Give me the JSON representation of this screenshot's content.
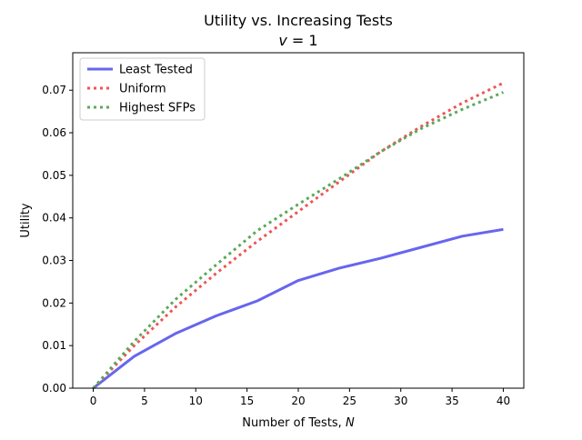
{
  "chart_data": {
    "type": "line",
    "title": "Utility vs. Increasing Tests",
    "subtitle_prefix": "v",
    "subtitle_suffix": " = 1",
    "xlabel_prefix": "Number of Tests, ",
    "xlabel_var": "N",
    "ylabel": "Utility",
    "xlim": [
      -2,
      42
    ],
    "ylim": [
      0,
      0.0788
    ],
    "xticks": [
      0,
      5,
      10,
      15,
      20,
      25,
      30,
      35,
      40
    ],
    "xtick_labels": [
      "0",
      "5",
      "10",
      "15",
      "20",
      "25",
      "30",
      "35",
      "40"
    ],
    "yticks": [
      0,
      0.01,
      0.02,
      0.03,
      0.04,
      0.05,
      0.06,
      0.07
    ],
    "ytick_labels": [
      "0.00",
      "0.01",
      "0.02",
      "0.03",
      "0.04",
      "0.05",
      "0.06",
      "0.07"
    ],
    "grid": false,
    "legend_position": "top-left",
    "series": [
      {
        "name": "Least Tested",
        "color": "#6666ee",
        "line_style": "solid",
        "x": [
          0,
          4,
          8,
          12,
          16,
          20,
          24,
          28,
          32,
          36,
          40
        ],
        "y": [
          0.0,
          0.0075,
          0.0128,
          0.017,
          0.0205,
          0.0253,
          0.0282,
          0.0305,
          0.0331,
          0.0357,
          0.0373
        ]
      },
      {
        "name": "Uniform",
        "color": "#ee5555",
        "line_style": "dotted",
        "x": [
          0,
          4,
          8,
          12,
          16,
          20,
          24,
          28,
          32,
          36,
          40
        ],
        "y": [
          0.0,
          0.01,
          0.019,
          0.027,
          0.0345,
          0.0415,
          0.0485,
          0.0555,
          0.0615,
          0.067,
          0.0717
        ]
      },
      {
        "name": "Highest SFPs",
        "color": "#5ca85c",
        "line_style": "dotted",
        "x": [
          0,
          4,
          8,
          12,
          16,
          20,
          24,
          28,
          32,
          36,
          40
        ],
        "y": [
          0.0,
          0.011,
          0.0208,
          0.029,
          0.037,
          0.0432,
          0.0492,
          0.0555,
          0.061,
          0.0655,
          0.0695
        ]
      }
    ]
  }
}
